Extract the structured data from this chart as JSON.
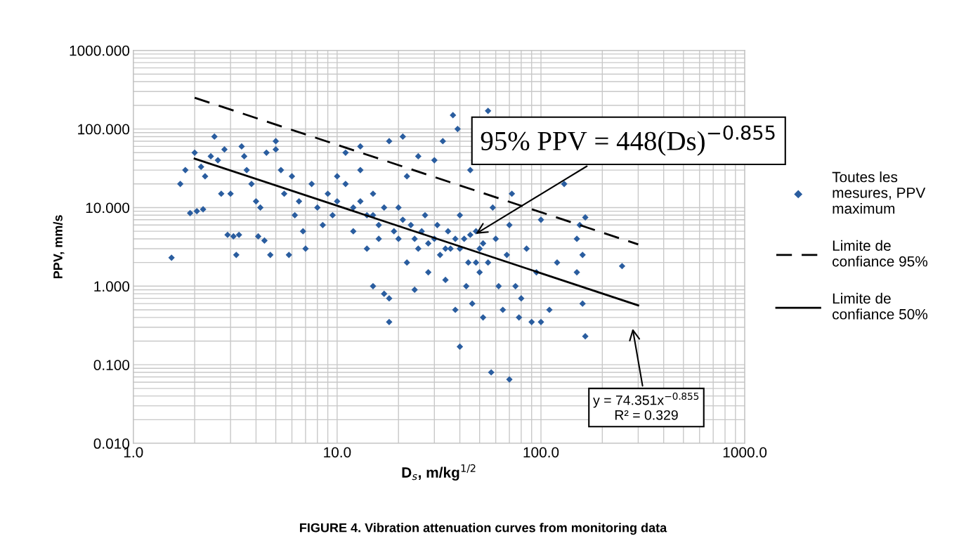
{
  "chart_data": {
    "type": "scatter",
    "title": "FIGURE 4. Vibration attenuation curves from monitoring data",
    "xlabel": "D$_{s}$, m/kg$^{1/2}$",
    "ylabel": "PPV, mm/s",
    "log": "xy",
    "grid": true,
    "legend": "right",
    "xlim": [
      1,
      1000
    ],
    "xticks": [
      {
        "value": 1,
        "label": "1.0"
      },
      {
        "value": 10,
        "label": "10.0"
      },
      {
        "value": 100,
        "label": "100.0"
      },
      {
        "value": 1000,
        "label": "1000.0"
      }
    ],
    "ylim": [
      0.01,
      1000
    ],
    "yticks": [
      {
        "value": 0.01,
        "label": "0.010"
      },
      {
        "value": 0.1,
        "label": "0.100"
      },
      {
        "value": 1,
        "label": "1.000"
      },
      {
        "value": 10,
        "label": "10.000"
      },
      {
        "value": 100,
        "label": "100.000"
      },
      {
        "value": 1000,
        "label": "1000.000"
      }
    ],
    "series": [
      {
        "name": "Toutes les\nmesures, PPV\nmaximum",
        "marker": "diamond",
        "color": "#2a5d9f",
        "x": [
          1.54,
          1.7,
          1.9,
          2.05,
          2.2,
          1.8,
          2.0,
          2.15,
          2.25,
          2.4,
          2.5,
          2.6,
          2.8,
          2.7,
          3.0,
          2.9,
          3.1,
          3.3,
          3.2,
          3.4,
          3.5,
          3.6,
          3.8,
          4.0,
          4.2,
          4.1,
          4.4,
          4.7,
          4.5,
          5.0,
          5.0,
          5.3,
          5.5,
          5.8,
          6.0,
          6.5,
          6.2,
          6.8,
          7.0,
          7.5,
          8.0,
          8.5,
          9.0,
          9.5,
          10,
          10,
          11,
          11,
          12,
          12,
          13,
          13,
          14,
          14,
          15,
          15,
          16,
          17,
          18,
          18,
          18,
          20,
          20,
          21,
          22,
          22,
          23,
          24,
          25,
          25,
          27,
          28,
          30,
          30,
          32,
          33,
          34,
          35,
          36,
          37,
          38,
          39,
          40,
          40,
          42,
          43,
          44,
          45,
          46,
          48,
          50,
          50,
          52,
          55,
          55,
          57,
          58,
          60,
          62,
          65,
          68,
          70,
          70,
          72,
          75,
          78,
          80,
          85,
          90,
          95,
          100,
          100,
          110,
          120,
          130,
          150,
          150,
          155,
          160,
          165,
          160,
          165,
          250,
          13,
          15,
          16,
          17,
          19,
          21,
          24,
          26,
          28,
          31,
          34,
          38,
          40,
          45,
          48,
          52
        ],
        "values": [
          2.3,
          20,
          8.5,
          9,
          9.5,
          30,
          50,
          33,
          25,
          45,
          80,
          40,
          55,
          15,
          15,
          4.5,
          4.3,
          4.5,
          2.5,
          60,
          45,
          30,
          20,
          12,
          10,
          4.3,
          3.8,
          2.5,
          50,
          55,
          70,
          30,
          15,
          2.5,
          25,
          12,
          8,
          5,
          3,
          20,
          10,
          6,
          15,
          8,
          12,
          25,
          50,
          20,
          10,
          5,
          60,
          30,
          8,
          3,
          15,
          1.0,
          6,
          0.8,
          0.7,
          0.35,
          70,
          10,
          4,
          80,
          25,
          2,
          6,
          0.9,
          45,
          3,
          8,
          1.5,
          4,
          40,
          2.5,
          70,
          1.2,
          5,
          3,
          150,
          0.5,
          100,
          0.17,
          8,
          4,
          1.0,
          2,
          30,
          0.6,
          5,
          3,
          1.5,
          0.4,
          2,
          170,
          0.08,
          10,
          4,
          1.0,
          0.5,
          2.5,
          0.065,
          6,
          15,
          1,
          0.4,
          0.7,
          3,
          0.35,
          1.5,
          0.35,
          7,
          0.5,
          2,
          20,
          4,
          1.5,
          6,
          0.6,
          0.23,
          2.5,
          7.5,
          1.8,
          12,
          8,
          4,
          10,
          5,
          7,
          4,
          5,
          3.5,
          6,
          3,
          4,
          3,
          4.5,
          2,
          3.5
        ]
      },
      {
        "name": "Limite de\nconfiance 95%",
        "type": "line",
        "line_style": "dashed",
        "color": "#000000",
        "x": [
          2,
          300
        ],
        "values": [
          250,
          3.4
        ]
      },
      {
        "name": "Limite de\nconfiance 50%",
        "type": "line",
        "line_style": "solid",
        "color": "#000000",
        "x": [
          2,
          300
        ],
        "values": [
          42,
          0.57
        ]
      }
    ],
    "annotations": [
      {
        "text": "95% PPV = 448(Ds)$^{−0.855}$",
        "x": 47,
        "y": 4.5
      },
      "y = 74.351x$^{−0.855}$\nR² = 0.329"
    ]
  }
}
